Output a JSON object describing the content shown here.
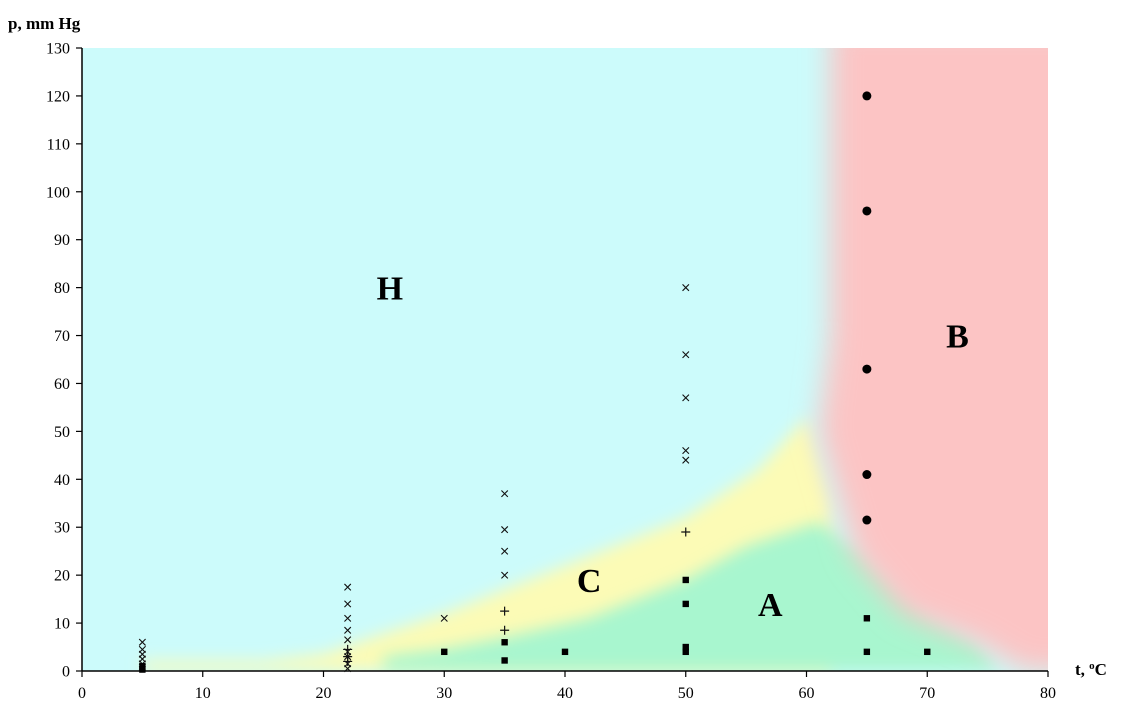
{
  "chart_data": {
    "type": "scatter",
    "title": "",
    "xlabel": "t, °C",
    "xlabel_main": "t, ",
    "xlabel_sup": "o",
    "xlabel_unit": "C",
    "ylabel": "p, mm Hg",
    "xlim": [
      0,
      80
    ],
    "ylim": [
      0,
      130
    ],
    "x_ticks": [
      0,
      10,
      20,
      30,
      40,
      50,
      60,
      70,
      80
    ],
    "y_ticks": [
      0,
      10,
      20,
      30,
      40,
      50,
      60,
      70,
      80,
      90,
      100,
      110,
      120,
      130
    ],
    "grid": false,
    "legend": "none",
    "region_labels": [
      {
        "text": "H",
        "x": 25.5,
        "y": 80,
        "color": "#ccfbfb"
      },
      {
        "text": "C",
        "x": 42,
        "y": 19,
        "color": "#fcfbb6"
      },
      {
        "text": "A",
        "x": 57,
        "y": 14,
        "color": "#a8f6cf"
      },
      {
        "text": "B",
        "x": 72.5,
        "y": 70,
        "color": "#fcc4c4"
      }
    ],
    "series": [
      {
        "marker": "cross",
        "points": [
          [
            5,
            6
          ],
          [
            5,
            4.5
          ],
          [
            5,
            3.5
          ],
          [
            5,
            2.5
          ],
          [
            5,
            1.5
          ],
          [
            5,
            0.8
          ],
          [
            22,
            17.5
          ],
          [
            22,
            14
          ],
          [
            22,
            11
          ],
          [
            22,
            8.5
          ],
          [
            22,
            6.5
          ],
          [
            22,
            4
          ],
          [
            22,
            3
          ],
          [
            22,
            1.5
          ],
          [
            22,
            0.5
          ],
          [
            30,
            11
          ],
          [
            35,
            37
          ],
          [
            35,
            29.5
          ],
          [
            35,
            25
          ],
          [
            35,
            20
          ],
          [
            50,
            80
          ],
          [
            50,
            66
          ],
          [
            50,
            57
          ],
          [
            50,
            46
          ],
          [
            50,
            44
          ]
        ]
      },
      {
        "marker": "plus",
        "points": [
          [
            22,
            4.5
          ],
          [
            22,
            3
          ],
          [
            22,
            2
          ],
          [
            35,
            12.5
          ],
          [
            35,
            8.5
          ],
          [
            50,
            29
          ]
        ]
      },
      {
        "marker": "square",
        "points": [
          [
            5,
            1
          ],
          [
            5,
            0.3
          ],
          [
            30,
            4
          ],
          [
            35,
            6
          ],
          [
            35,
            2.2
          ],
          [
            40,
            4
          ],
          [
            50,
            19
          ],
          [
            50,
            14
          ],
          [
            50,
            5
          ],
          [
            50,
            4
          ],
          [
            65,
            11
          ],
          [
            65,
            4
          ],
          [
            70,
            4
          ]
        ]
      },
      {
        "marker": "circle",
        "points": [
          [
            65,
            120
          ],
          [
            65,
            96
          ],
          [
            65,
            63
          ],
          [
            65,
            41
          ],
          [
            65,
            31.5
          ]
        ]
      }
    ]
  }
}
